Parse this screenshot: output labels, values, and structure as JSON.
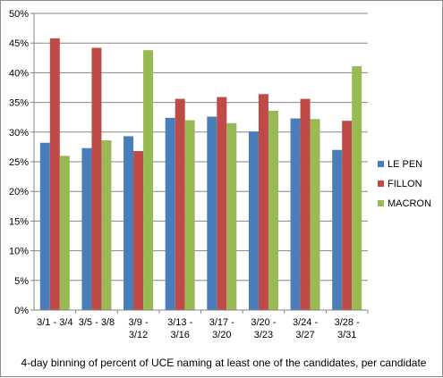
{
  "chart_data": {
    "type": "bar",
    "categories": [
      [
        "3/1 - 3/4"
      ],
      [
        "3/5 - 3/8"
      ],
      [
        "3/9 -",
        "3/12"
      ],
      [
        "3/13 -",
        "3/16"
      ],
      [
        "3/17 -",
        "3/20"
      ],
      [
        "3/20 -",
        "3/23"
      ],
      [
        "3/24 -",
        "3/27"
      ],
      [
        "3/28 -",
        "3/31"
      ]
    ],
    "series": [
      {
        "name": "LE PEN",
        "color": "#4a7ebb",
        "values": [
          28.2,
          27.3,
          29.3,
          32.4,
          32.6,
          30.1,
          32.3,
          27.0
        ]
      },
      {
        "name": "FILLON",
        "color": "#be4b48",
        "values": [
          45.8,
          44.2,
          26.8,
          35.6,
          35.9,
          36.4,
          35.6,
          31.9
        ]
      },
      {
        "name": "MACRON",
        "color": "#98b954",
        "values": [
          26.0,
          28.6,
          43.8,
          32.0,
          31.5,
          33.6,
          32.2,
          41.1
        ]
      }
    ],
    "yticks": [
      "0%",
      "5%",
      "10%",
      "15%",
      "20%",
      "25%",
      "30%",
      "35%",
      "40%",
      "45%",
      "50%"
    ],
    "ylim": [
      0,
      50
    ],
    "xlabel": "4-day binning of percent of UCE naming at least one of the candidates, per candidate",
    "grid": true,
    "legend": "right"
  }
}
